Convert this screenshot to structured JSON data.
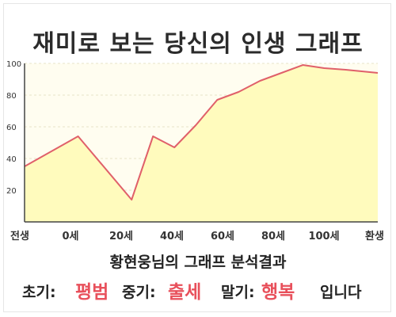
{
  "title": "재미로 보는 당신의 인생 그래프",
  "subtitle": "황현웅님의 그래프 분석결과",
  "results": {
    "early_label": "초기:",
    "early_value": "평범",
    "middle_label": "중기:",
    "middle_value": "출세",
    "late_label": "말기:",
    "late_value": "행복",
    "ending": "입니다"
  },
  "colors": {
    "line": "#e0606a",
    "fill": "#fffbbd",
    "plot_bg": "#fffdf0",
    "accent": "#e8505b"
  },
  "chart_data": {
    "type": "area",
    "x_categories": [
      "전생",
      "0세",
      "20세",
      "40세",
      "60세",
      "80세",
      "100세",
      "환생"
    ],
    "x": [
      -20,
      0,
      20,
      28,
      36,
      44,
      52,
      60,
      68,
      76,
      84,
      92,
      100,
      112
    ],
    "y": [
      35,
      54,
      14,
      54,
      47,
      61,
      77,
      82,
      89,
      94,
      99,
      97,
      96,
      94
    ],
    "y_ticks": [
      20,
      40,
      60,
      80,
      100
    ],
    "ylim": [
      0,
      100
    ],
    "grid": true,
    "legend": "none"
  }
}
